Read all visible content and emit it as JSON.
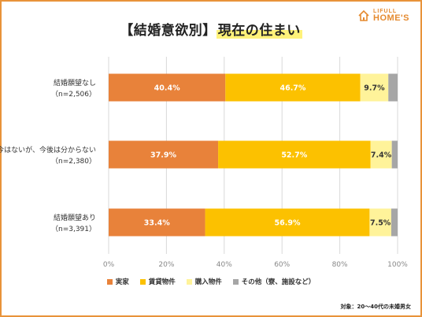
{
  "title": {
    "prefix": "【結婚意欲別】",
    "highlight": "現在の住まい"
  },
  "logo": {
    "line1": "LIFULL",
    "line2": "HOME'S"
  },
  "footnote": "対象：20～40代の未婚男女",
  "colors": {
    "jikka": "#e8823a",
    "chintai": "#fcc100",
    "konyu": "#fff39a",
    "other": "#a6a6a6",
    "grid": "#d9d9d9"
  },
  "chart_data": {
    "type": "bar",
    "orientation": "horizontal-stacked-100",
    "categories": [
      {
        "label": "結婚願望なし",
        "n": "（n=2,506）"
      },
      {
        "label": "今はないが、今後は分からない",
        "n": "（n=2,380）"
      },
      {
        "label": "結婚願望あり",
        "n": "（n=3,391）"
      }
    ],
    "series": [
      {
        "name": "実家",
        "values": [
          40.4,
          37.9,
          33.4
        ],
        "labels": [
          "40.4%",
          "37.9%",
          "33.4%"
        ]
      },
      {
        "name": "賃貸物件",
        "values": [
          46.7,
          52.7,
          56.9
        ],
        "labels": [
          "46.7%",
          "52.7%",
          "56.9%"
        ]
      },
      {
        "name": "購入物件",
        "values": [
          9.7,
          7.4,
          7.5
        ],
        "labels": [
          "9.7%",
          "7.4%",
          "7.5%"
        ]
      },
      {
        "name": "その他（寮、施設など）",
        "values": [
          3.2,
          2.0,
          2.2
        ],
        "labels": [
          "",
          "",
          ""
        ]
      }
    ],
    "xlim": [
      0,
      100
    ],
    "xticks": [
      "0%",
      "20%",
      "40%",
      "60%",
      "80%",
      "100%"
    ],
    "grid": true,
    "legend_position": "bottom"
  }
}
